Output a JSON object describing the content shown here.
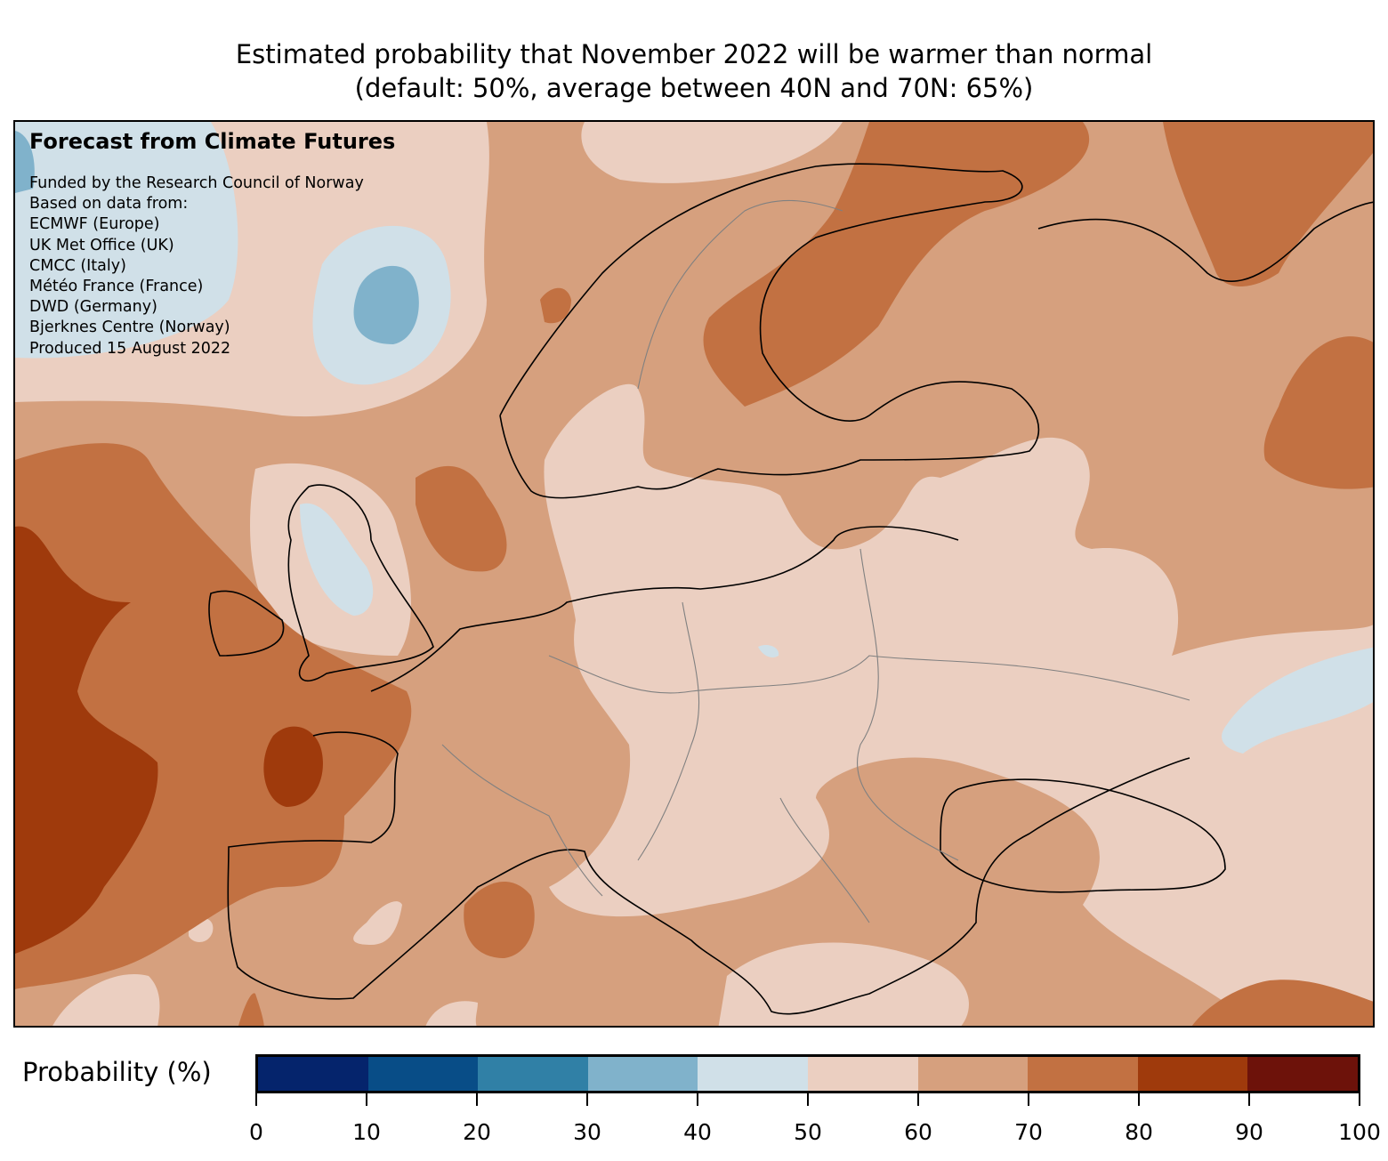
{
  "title": {
    "line1": "Estimated probability that November 2022 will be warmer than normal",
    "line2": "(default: 50%, average between 40N and 70N: 65%)"
  },
  "overlay": {
    "heading": "Forecast from Climate Futures",
    "lines": [
      "Funded by the Research Council of Norway",
      "Based on data from:",
      "ECMWF (Europe)",
      "UK Met Office (UK)",
      "CMCC (Italy)",
      "Météo France (France)",
      "DWD (Germany)",
      "Bjerknes Centre (Norway)",
      "Produced 15 August 2022"
    ]
  },
  "colorbar": {
    "label": "Probability (%)",
    "ticks": [
      "0",
      "10",
      "20",
      "30",
      "40",
      "50",
      "60",
      "70",
      "80",
      "90",
      "100"
    ],
    "colors": [
      "#05246c",
      "#084d87",
      "#3080a6",
      "#80b2cb",
      "#d0e0e8",
      "#ebcfc1",
      "#d6a07e",
      "#c27142",
      "#9f3a0c",
      "#6d120a"
    ]
  }
}
